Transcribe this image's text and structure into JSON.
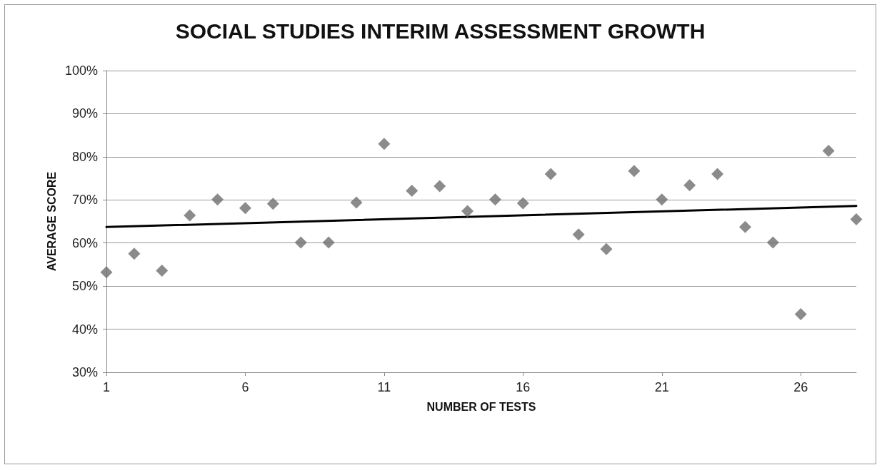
{
  "chart_data": {
    "type": "scatter",
    "title": "SOCIAL STUDIES INTERIM ASSESSMENT GROWTH",
    "xlabel": "NUMBER OF TESTS",
    "ylabel": "AVERAGE SCORE",
    "series": [
      {
        "color": "#6e6e6e",
        "marker": "diamond",
        "x": [
          1,
          2,
          3,
          4,
          5,
          6,
          7,
          8,
          9,
          10,
          11,
          12,
          13,
          14,
          15,
          16,
          17,
          18,
          19,
          20,
          21,
          22,
          23,
          24,
          25,
          26,
          27,
          28
        ],
        "values": [
          53.2,
          57.5,
          53.6,
          66.4,
          70.1,
          68.1,
          69.1,
          60.1,
          60.1,
          69.4,
          83,
          72.1,
          73.2,
          67.4,
          70.1,
          69.2,
          76,
          62,
          58.6,
          76.7,
          70.1,
          73.4,
          76,
          63.7,
          60.1,
          43.5,
          81.4,
          65.5
        ]
      },
      {
        "type": "line",
        "color": "#000000",
        "marker": "none",
        "line_style": "solid",
        "x": [
          1,
          28
        ],
        "values": [
          63.7,
          68.6
        ]
      }
    ],
    "xlim": [
      1,
      28
    ],
    "xticks": [
      1,
      6,
      11,
      16,
      21,
      26
    ],
    "ylim": [
      30,
      100
    ],
    "yticks": [
      {
        "value": 30,
        "label": "30%"
      },
      {
        "value": 40,
        "label": "40%"
      },
      {
        "value": 50,
        "label": "50%"
      },
      {
        "value": 60,
        "label": "60%"
      },
      {
        "value": 70,
        "label": "70%"
      },
      {
        "value": 80,
        "label": "80%"
      },
      {
        "value": 90,
        "label": "90%"
      },
      {
        "value": 100,
        "label": "100%"
      }
    ],
    "grid": "y"
  }
}
